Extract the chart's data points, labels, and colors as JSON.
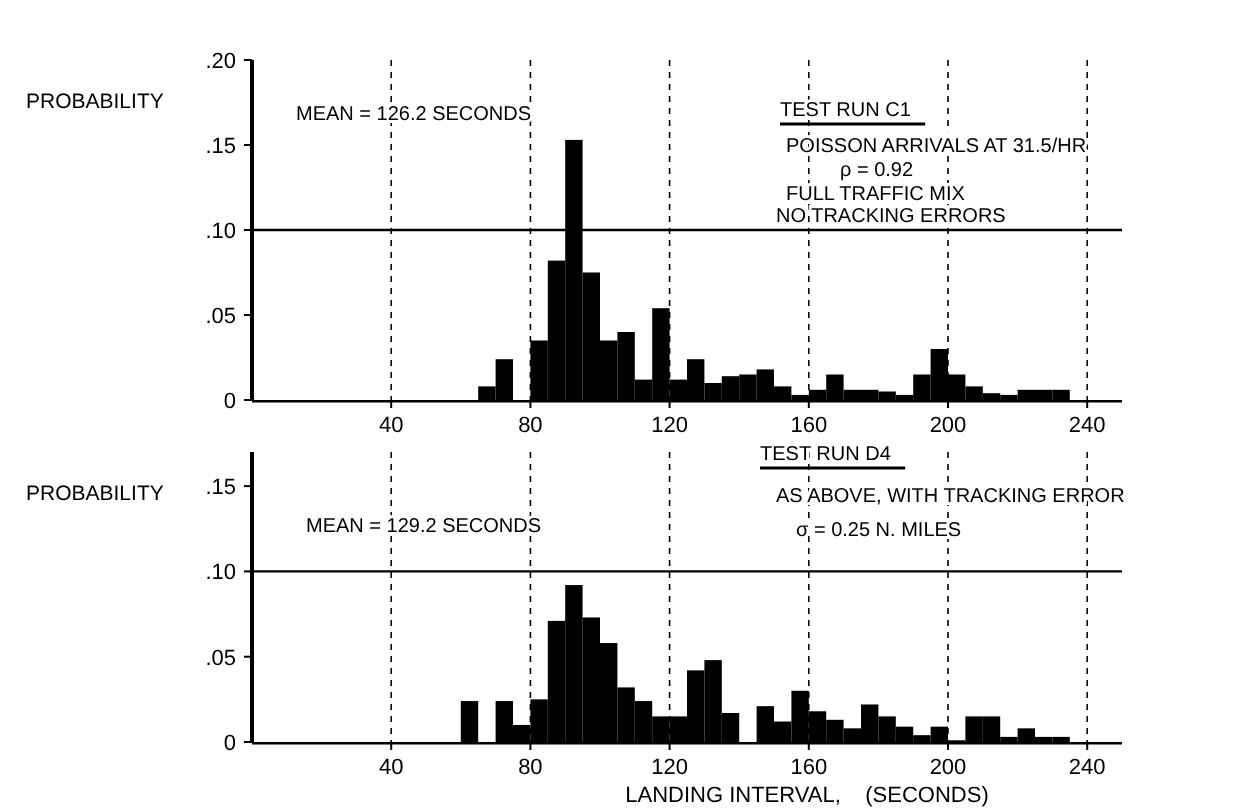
{
  "chart_data": [
    {
      "type": "histogram",
      "ylabel": "PROBABILITY",
      "color": "#000000",
      "bins": [
        60,
        65,
        70,
        75,
        80,
        85,
        90,
        95,
        100,
        105,
        110,
        115,
        120,
        125,
        130,
        135,
        140,
        145,
        150,
        155,
        160,
        165,
        170,
        175,
        180,
        185,
        190,
        195,
        200,
        205,
        210,
        215,
        220,
        225,
        230,
        235
      ],
      "values": [
        0,
        0.008,
        0.024,
        0,
        0.035,
        0.082,
        0.153,
        0.075,
        0.035,
        0.04,
        0.012,
        0.054,
        0.012,
        0.024,
        0.01,
        0.014,
        0.015,
        0.018,
        0.008,
        0.003,
        0.006,
        0.015,
        0.006,
        0.006,
        0.005,
        0.003,
        0.015,
        0.03,
        0.015,
        0.008,
        0.004,
        0.003,
        0.006,
        0.006,
        0.006
      ],
      "xlim": [
        0,
        250
      ],
      "xticks": [
        40,
        80,
        120,
        160,
        200,
        240
      ],
      "ylim": [
        0,
        0.2
      ],
      "yticks": [
        0,
        {
          "value": 0.05,
          "label": ".05"
        },
        {
          "value": 0.1,
          "label": ".10"
        },
        {
          "value": 0.15,
          "label": ".15"
        },
        {
          "value": 0.2,
          "label": ".20"
        }
      ],
      "grid": "x",
      "ref_lines": [
        {
          "axis": "y",
          "value": 0.1,
          "label": null
        }
      ],
      "annotations": [
        "MEAN = 126.2 SECONDS",
        "TEST RUN C1",
        "POISSON ARRIVALS AT 31.5/HR",
        "ρ = 0.92",
        "FULL TRAFFIC MIX",
        "NO TRACKING ERRORS"
      ]
    },
    {
      "type": "histogram",
      "ylabel": "PROBABILITY",
      "xlabel": "LANDING INTERVAL,    (SECONDS)",
      "color": "#000000",
      "bins": [
        60,
        65,
        70,
        75,
        80,
        85,
        90,
        95,
        100,
        105,
        110,
        115,
        120,
        125,
        130,
        135,
        140,
        145,
        150,
        155,
        160,
        165,
        170,
        175,
        180,
        185,
        190,
        195,
        200,
        205,
        210,
        215,
        220,
        225,
        230,
        235
      ],
      "values": [
        0.024,
        0,
        0.024,
        0.01,
        0.025,
        0.071,
        0.092,
        0.073,
        0.058,
        0.032,
        0.024,
        0.015,
        0.015,
        0.042,
        0.048,
        0.017,
        0,
        0.021,
        0.012,
        0.03,
        0.018,
        0.013,
        0.008,
        0.022,
        0.015,
        0.009,
        0.004,
        0.009,
        0.001,
        0.015,
        0.015,
        0.003,
        0.008,
        0.003,
        0.003
      ],
      "xlim": [
        0,
        250
      ],
      "xticks": [
        40,
        80,
        120,
        160,
        200,
        240
      ],
      "ylim": [
        0,
        0.17
      ],
      "yticks": [
        0,
        {
          "value": 0.05,
          "label": ".05"
        },
        {
          "value": 0.1,
          "label": ".10"
        },
        {
          "value": 0.15,
          "label": ".15"
        }
      ],
      "grid": "x",
      "ref_lines": [
        {
          "axis": "y",
          "value": 0.1,
          "label": null
        }
      ],
      "annotations": [
        "MEAN = 129.2 SECONDS",
        "TEST RUN D4",
        "AS ABOVE, WITH TRACKING ERROR",
        "σ = 0.25 N. MILES"
      ]
    }
  ]
}
